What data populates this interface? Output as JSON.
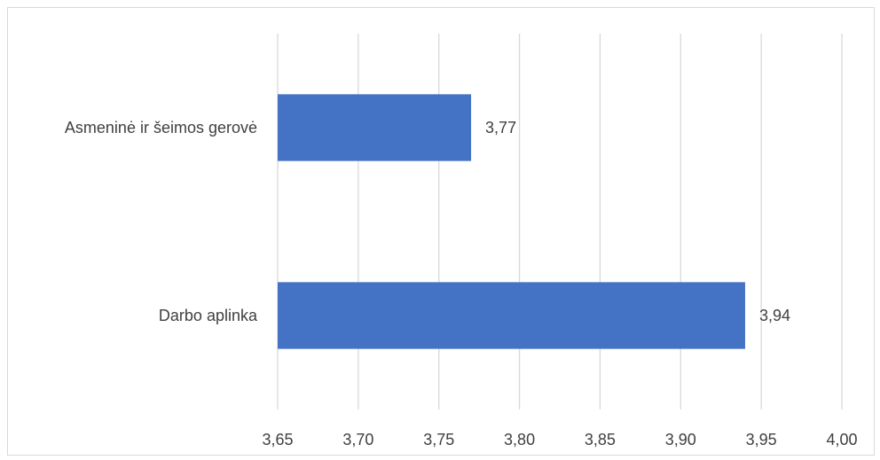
{
  "chart_data": {
    "type": "bar",
    "orientation": "horizontal",
    "categories": [
      "Asmeninė ir šeimos gerovė",
      "Darbo aplinka"
    ],
    "values": [
      3.77,
      3.94
    ],
    "data_labels": [
      "3,77",
      "3,94"
    ],
    "xlim": [
      3.65,
      4.0
    ],
    "x_ticks": [
      3.65,
      3.7,
      3.75,
      3.8,
      3.85,
      3.9,
      3.95,
      4.0
    ],
    "x_tick_labels": [
      "3,65",
      "3,70",
      "3,75",
      "3,80",
      "3,85",
      "3,90",
      "3,95",
      "4,00"
    ],
    "grid": true,
    "legend": "none",
    "bar_color": "#4472C4",
    "grid_color": "#d9d9d9",
    "text_color": "#404040"
  }
}
